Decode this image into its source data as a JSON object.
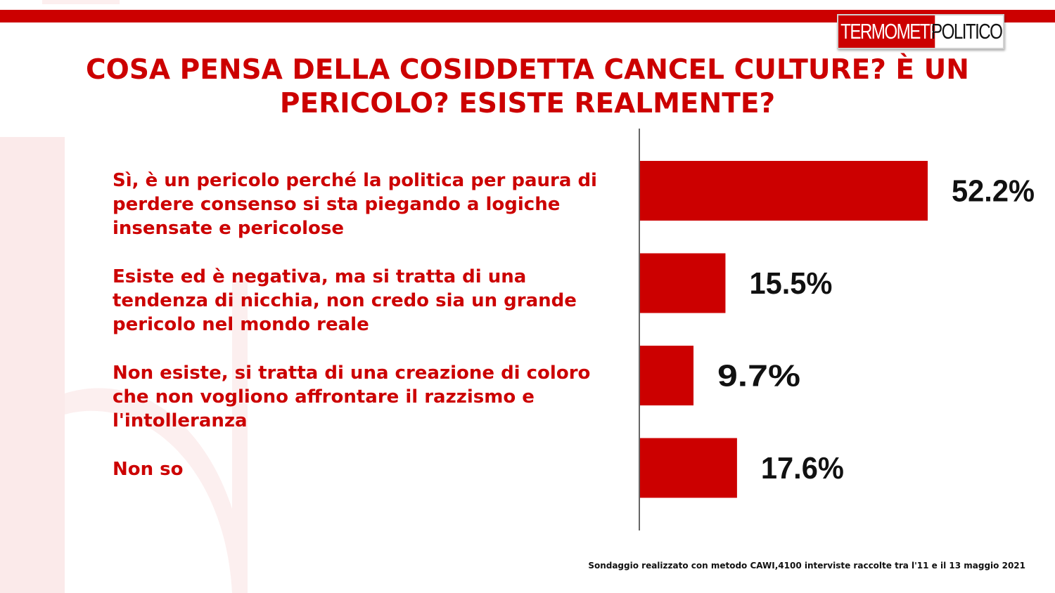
{
  "logo": {
    "part1": "TERMOMETRO",
    "part2": "POLITICO"
  },
  "title": "COSA PENSA DELLA COSIDDETTA CANCEL CULTURE? È UN PERICOLO? ESISTE REALMENTE?",
  "footnote": "Sondaggio realizzato con metodo CAWI,4100 interviste raccolte tra l'11  e il 13 maggio 2021",
  "colors": {
    "accent": "#cc0000",
    "text": "#111111",
    "watermark": "#fbeaea"
  },
  "chart_data": {
    "type": "bar",
    "orientation": "horizontal",
    "categories": [
      "Sì, è un pericolo perché la politica per paura di perdere consenso si sta piegando a logiche insensate e pericolose",
      "Esiste ed è negativa, ma si tratta di una tendenza di nicchia, non credo sia un grande pericolo nel mondo reale",
      "Non esiste, si tratta di una creazione di coloro che non vogliono affrontare il razzismo e l'intolleranza",
      "Non so"
    ],
    "values": [
      52.2,
      15.5,
      9.7,
      17.6
    ],
    "value_labels": [
      "52.2%",
      "15.5%",
      "9.7%",
      "17.6%"
    ],
    "xlim": [
      0,
      100
    ],
    "title": "COSA PENSA DELLA COSIDDETTA CANCEL CULTURE? È UN PERICOLO? ESISTE REALMENTE?",
    "xlabel": "",
    "ylabel": "",
    "grid": false,
    "legend": "none",
    "bar_color": "#cc0000"
  }
}
